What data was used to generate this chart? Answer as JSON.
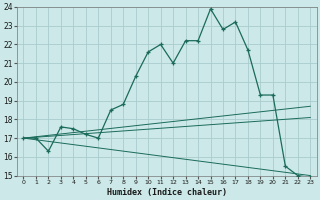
{
  "xlabel": "Humidex (Indice chaleur)",
  "bg_color": "#cce8e8",
  "grid_color": "#aacccc",
  "line_color": "#1a6b5a",
  "xlim": [
    -0.5,
    23.5
  ],
  "ylim": [
    15,
    24
  ],
  "xticks": [
    0,
    1,
    2,
    3,
    4,
    5,
    6,
    7,
    8,
    9,
    10,
    11,
    12,
    13,
    14,
    15,
    16,
    17,
    18,
    19,
    20,
    21,
    22,
    23
  ],
  "yticks": [
    15,
    16,
    17,
    18,
    19,
    20,
    21,
    22,
    23,
    24
  ],
  "main_x": [
    0,
    1,
    2,
    3,
    4,
    5,
    6,
    7,
    8,
    9,
    10,
    11,
    12,
    13,
    14,
    15,
    16,
    17,
    18,
    19,
    20,
    21,
    22,
    23
  ],
  "main_y": [
    17.0,
    17.0,
    16.3,
    17.6,
    17.5,
    17.2,
    17.0,
    18.5,
    18.8,
    20.3,
    21.6,
    22.0,
    21.0,
    22.2,
    22.2,
    23.9,
    22.8,
    23.2,
    21.7,
    19.3,
    19.3,
    15.5,
    15.0,
    14.9
  ],
  "line1_x": [
    0,
    23
  ],
  "line1_y": [
    17.0,
    18.7
  ],
  "line2_x": [
    0,
    23
  ],
  "line2_y": [
    17.0,
    18.1
  ],
  "line3_x": [
    0,
    23
  ],
  "line3_y": [
    17.0,
    15.0
  ]
}
